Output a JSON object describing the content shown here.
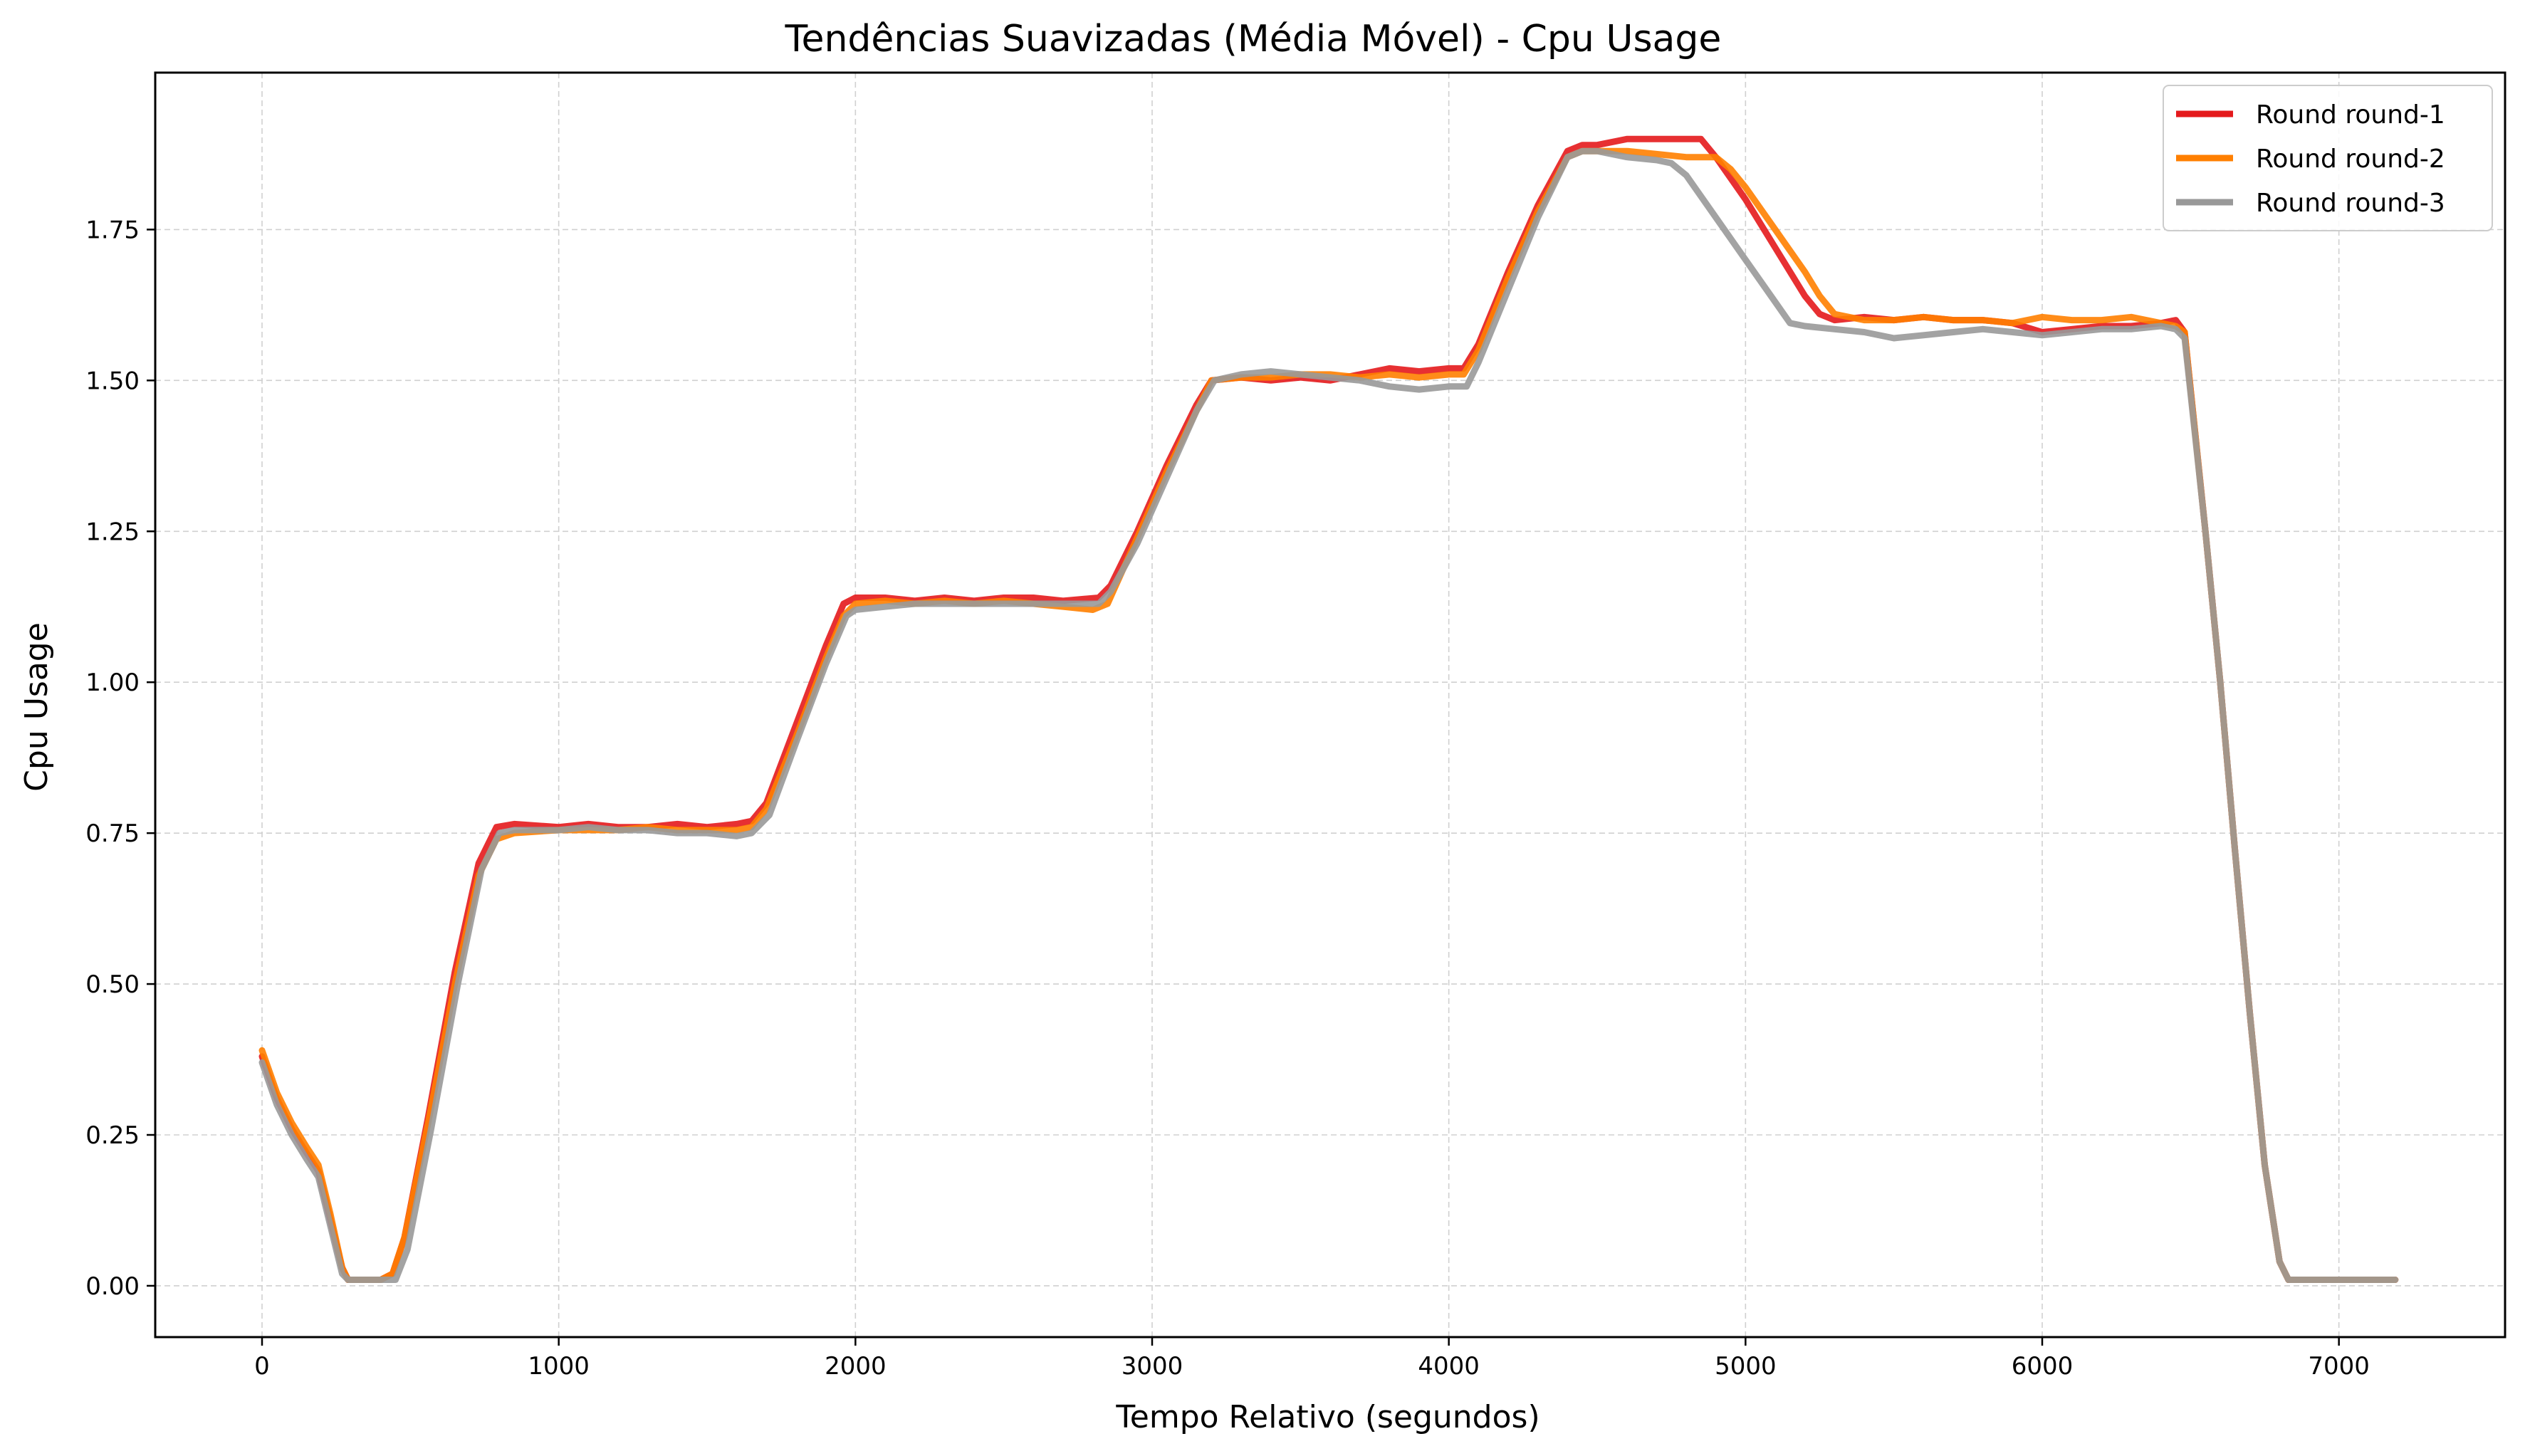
{
  "chart_data": {
    "type": "line",
    "title": "Tendências Suavizadas (Média Móvel) - Cpu Usage",
    "xlabel": "Tempo Relativo (segundos)",
    "ylabel": "Cpu Usage",
    "xlim": [
      -360,
      7560
    ],
    "ylim": [
      -0.085,
      2.01
    ],
    "xticks": [
      0,
      1000,
      2000,
      3000,
      4000,
      5000,
      6000,
      7000
    ],
    "yticks": [
      0.0,
      0.25,
      0.5,
      0.75,
      1.0,
      1.25,
      1.5,
      1.75
    ],
    "xtick_labels": [
      "0",
      "1000",
      "2000",
      "3000",
      "4000",
      "5000",
      "6000",
      "7000"
    ],
    "ytick_labels": [
      "0.00",
      "0.25",
      "0.50",
      "0.75",
      "1.00",
      "1.25",
      "1.50",
      "1.75"
    ],
    "grid": true,
    "legend_position": "top-right",
    "series": [
      {
        "name": "Round round-1",
        "color": "#e41a1c",
        "points": [
          [
            0,
            0.38
          ],
          [
            50,
            0.31
          ],
          [
            100,
            0.26
          ],
          [
            150,
            0.22
          ],
          [
            190,
            0.19
          ],
          [
            230,
            0.11
          ],
          [
            270,
            0.03
          ],
          [
            290,
            0.01
          ],
          [
            330,
            0.01
          ],
          [
            400,
            0.01
          ],
          [
            440,
            0.02
          ],
          [
            480,
            0.08
          ],
          [
            560,
            0.28
          ],
          [
            650,
            0.52
          ],
          [
            730,
            0.7
          ],
          [
            790,
            0.76
          ],
          [
            850,
            0.765
          ],
          [
            1000,
            0.76
          ],
          [
            1100,
            0.765
          ],
          [
            1200,
            0.76
          ],
          [
            1300,
            0.76
          ],
          [
            1400,
            0.765
          ],
          [
            1500,
            0.76
          ],
          [
            1600,
            0.765
          ],
          [
            1650,
            0.77
          ],
          [
            1700,
            0.8
          ],
          [
            1800,
            0.93
          ],
          [
            1900,
            1.06
          ],
          [
            1960,
            1.13
          ],
          [
            2000,
            1.14
          ],
          [
            2100,
            1.14
          ],
          [
            2200,
            1.135
          ],
          [
            2300,
            1.14
          ],
          [
            2400,
            1.135
          ],
          [
            2500,
            1.14
          ],
          [
            2600,
            1.14
          ],
          [
            2700,
            1.135
          ],
          [
            2820,
            1.14
          ],
          [
            2860,
            1.16
          ],
          [
            2950,
            1.25
          ],
          [
            3050,
            1.36
          ],
          [
            3150,
            1.46
          ],
          [
            3200,
            1.5
          ],
          [
            3300,
            1.505
          ],
          [
            3400,
            1.5
          ],
          [
            3500,
            1.505
          ],
          [
            3600,
            1.5
          ],
          [
            3700,
            1.51
          ],
          [
            3800,
            1.52
          ],
          [
            3900,
            1.515
          ],
          [
            4000,
            1.52
          ],
          [
            4050,
            1.52
          ],
          [
            4100,
            1.56
          ],
          [
            4200,
            1.68
          ],
          [
            4300,
            1.79
          ],
          [
            4400,
            1.88
          ],
          [
            4450,
            1.89
          ],
          [
            4500,
            1.89
          ],
          [
            4600,
            1.9
          ],
          [
            4700,
            1.9
          ],
          [
            4800,
            1.9
          ],
          [
            4850,
            1.9
          ],
          [
            4900,
            1.87
          ],
          [
            5000,
            1.8
          ],
          [
            5100,
            1.72
          ],
          [
            5200,
            1.64
          ],
          [
            5250,
            1.61
          ],
          [
            5300,
            1.6
          ],
          [
            5400,
            1.605
          ],
          [
            5500,
            1.6
          ],
          [
            5600,
            1.605
          ],
          [
            5700,
            1.6
          ],
          [
            5800,
            1.6
          ],
          [
            5900,
            1.595
          ],
          [
            6000,
            1.58
          ],
          [
            6100,
            1.585
          ],
          [
            6200,
            1.59
          ],
          [
            6300,
            1.59
          ],
          [
            6400,
            1.595
          ],
          [
            6450,
            1.6
          ],
          [
            6480,
            1.58
          ],
          [
            6550,
            1.25
          ],
          [
            6600,
            1.0
          ],
          [
            6650,
            0.72
          ],
          [
            6700,
            0.45
          ],
          [
            6750,
            0.2
          ],
          [
            6800,
            0.04
          ],
          [
            6830,
            0.01
          ],
          [
            6900,
            0.01
          ],
          [
            7000,
            0.01
          ],
          [
            7100,
            0.01
          ],
          [
            7190,
            0.01
          ]
        ]
      },
      {
        "name": "Round round-2",
        "color": "#ff7f00",
        "points": [
          [
            0,
            0.39
          ],
          [
            50,
            0.32
          ],
          [
            100,
            0.27
          ],
          [
            150,
            0.23
          ],
          [
            190,
            0.2
          ],
          [
            230,
            0.12
          ],
          [
            270,
            0.03
          ],
          [
            290,
            0.01
          ],
          [
            330,
            0.01
          ],
          [
            400,
            0.01
          ],
          [
            440,
            0.02
          ],
          [
            480,
            0.08
          ],
          [
            560,
            0.27
          ],
          [
            650,
            0.5
          ],
          [
            730,
            0.68
          ],
          [
            790,
            0.74
          ],
          [
            850,
            0.75
          ],
          [
            1000,
            0.755
          ],
          [
            1100,
            0.755
          ],
          [
            1200,
            0.755
          ],
          [
            1300,
            0.76
          ],
          [
            1400,
            0.755
          ],
          [
            1500,
            0.755
          ],
          [
            1600,
            0.755
          ],
          [
            1650,
            0.76
          ],
          [
            1700,
            0.79
          ],
          [
            1800,
            0.91
          ],
          [
            1900,
            1.04
          ],
          [
            1960,
            1.11
          ],
          [
            2000,
            1.13
          ],
          [
            2100,
            1.135
          ],
          [
            2200,
            1.13
          ],
          [
            2300,
            1.135
          ],
          [
            2400,
            1.13
          ],
          [
            2500,
            1.135
          ],
          [
            2600,
            1.13
          ],
          [
            2700,
            1.125
          ],
          [
            2800,
            1.12
          ],
          [
            2850,
            1.13
          ],
          [
            2950,
            1.24
          ],
          [
            3050,
            1.35
          ],
          [
            3150,
            1.45
          ],
          [
            3200,
            1.5
          ],
          [
            3300,
            1.505
          ],
          [
            3400,
            1.505
          ],
          [
            3500,
            1.51
          ],
          [
            3600,
            1.51
          ],
          [
            3700,
            1.505
          ],
          [
            3800,
            1.51
          ],
          [
            3900,
            1.505
          ],
          [
            4000,
            1.51
          ],
          [
            4050,
            1.51
          ],
          [
            4100,
            1.55
          ],
          [
            4200,
            1.67
          ],
          [
            4300,
            1.78
          ],
          [
            4400,
            1.87
          ],
          [
            4450,
            1.88
          ],
          [
            4500,
            1.88
          ],
          [
            4600,
            1.88
          ],
          [
            4700,
            1.875
          ],
          [
            4800,
            1.87
          ],
          [
            4900,
            1.87
          ],
          [
            4950,
            1.85
          ],
          [
            5000,
            1.82
          ],
          [
            5100,
            1.75
          ],
          [
            5200,
            1.68
          ],
          [
            5250,
            1.64
          ],
          [
            5300,
            1.61
          ],
          [
            5400,
            1.6
          ],
          [
            5500,
            1.6
          ],
          [
            5600,
            1.605
          ],
          [
            5700,
            1.6
          ],
          [
            5800,
            1.6
          ],
          [
            5900,
            1.595
          ],
          [
            6000,
            1.605
          ],
          [
            6100,
            1.6
          ],
          [
            6200,
            1.6
          ],
          [
            6300,
            1.605
          ],
          [
            6400,
            1.595
          ],
          [
            6450,
            1.59
          ],
          [
            6480,
            1.58
          ],
          [
            6550,
            1.25
          ],
          [
            6600,
            1.0
          ],
          [
            6650,
            0.72
          ],
          [
            6700,
            0.45
          ],
          [
            6750,
            0.2
          ],
          [
            6800,
            0.04
          ],
          [
            6830,
            0.01
          ],
          [
            6900,
            0.01
          ],
          [
            7000,
            0.01
          ],
          [
            7100,
            0.01
          ],
          [
            7190,
            0.01
          ]
        ]
      },
      {
        "name": "Round round-3",
        "color": "#999999",
        "points": [
          [
            0,
            0.37
          ],
          [
            50,
            0.3
          ],
          [
            100,
            0.25
          ],
          [
            150,
            0.21
          ],
          [
            190,
            0.18
          ],
          [
            230,
            0.1
          ],
          [
            270,
            0.02
          ],
          [
            290,
            0.01
          ],
          [
            330,
            0.01
          ],
          [
            400,
            0.01
          ],
          [
            450,
            0.01
          ],
          [
            490,
            0.06
          ],
          [
            570,
            0.26
          ],
          [
            660,
            0.5
          ],
          [
            740,
            0.69
          ],
          [
            800,
            0.75
          ],
          [
            850,
            0.755
          ],
          [
            1000,
            0.755
          ],
          [
            1100,
            0.76
          ],
          [
            1200,
            0.755
          ],
          [
            1300,
            0.755
          ],
          [
            1400,
            0.75
          ],
          [
            1500,
            0.75
          ],
          [
            1600,
            0.745
          ],
          [
            1650,
            0.75
          ],
          [
            1710,
            0.78
          ],
          [
            1800,
            0.9
          ],
          [
            1900,
            1.03
          ],
          [
            1970,
            1.11
          ],
          [
            2000,
            1.12
          ],
          [
            2100,
            1.125
          ],
          [
            2200,
            1.13
          ],
          [
            2300,
            1.13
          ],
          [
            2400,
            1.13
          ],
          [
            2500,
            1.13
          ],
          [
            2600,
            1.13
          ],
          [
            2700,
            1.13
          ],
          [
            2820,
            1.13
          ],
          [
            2860,
            1.15
          ],
          [
            2950,
            1.23
          ],
          [
            3050,
            1.34
          ],
          [
            3150,
            1.45
          ],
          [
            3210,
            1.5
          ],
          [
            3300,
            1.51
          ],
          [
            3400,
            1.515
          ],
          [
            3500,
            1.51
          ],
          [
            3600,
            1.505
          ],
          [
            3700,
            1.5
          ],
          [
            3800,
            1.49
          ],
          [
            3900,
            1.485
          ],
          [
            4000,
            1.49
          ],
          [
            4060,
            1.49
          ],
          [
            4100,
            1.53
          ],
          [
            4200,
            1.65
          ],
          [
            4300,
            1.77
          ],
          [
            4400,
            1.87
          ],
          [
            4450,
            1.88
          ],
          [
            4500,
            1.88
          ],
          [
            4600,
            1.87
          ],
          [
            4700,
            1.865
          ],
          [
            4750,
            1.86
          ],
          [
            4800,
            1.84
          ],
          [
            4900,
            1.77
          ],
          [
            5000,
            1.7
          ],
          [
            5100,
            1.63
          ],
          [
            5150,
            1.595
          ],
          [
            5200,
            1.59
          ],
          [
            5300,
            1.585
          ],
          [
            5400,
            1.58
          ],
          [
            5500,
            1.57
          ],
          [
            5600,
            1.575
          ],
          [
            5700,
            1.58
          ],
          [
            5800,
            1.585
          ],
          [
            5900,
            1.58
          ],
          [
            6000,
            1.575
          ],
          [
            6100,
            1.58
          ],
          [
            6200,
            1.585
          ],
          [
            6300,
            1.585
          ],
          [
            6400,
            1.59
          ],
          [
            6450,
            1.585
          ],
          [
            6480,
            1.57
          ],
          [
            6550,
            1.25
          ],
          [
            6600,
            1.0
          ],
          [
            6650,
            0.72
          ],
          [
            6700,
            0.45
          ],
          [
            6750,
            0.2
          ],
          [
            6800,
            0.04
          ],
          [
            6830,
            0.01
          ],
          [
            6900,
            0.01
          ],
          [
            7000,
            0.01
          ],
          [
            7100,
            0.01
          ],
          [
            7190,
            0.01
          ]
        ]
      }
    ]
  }
}
